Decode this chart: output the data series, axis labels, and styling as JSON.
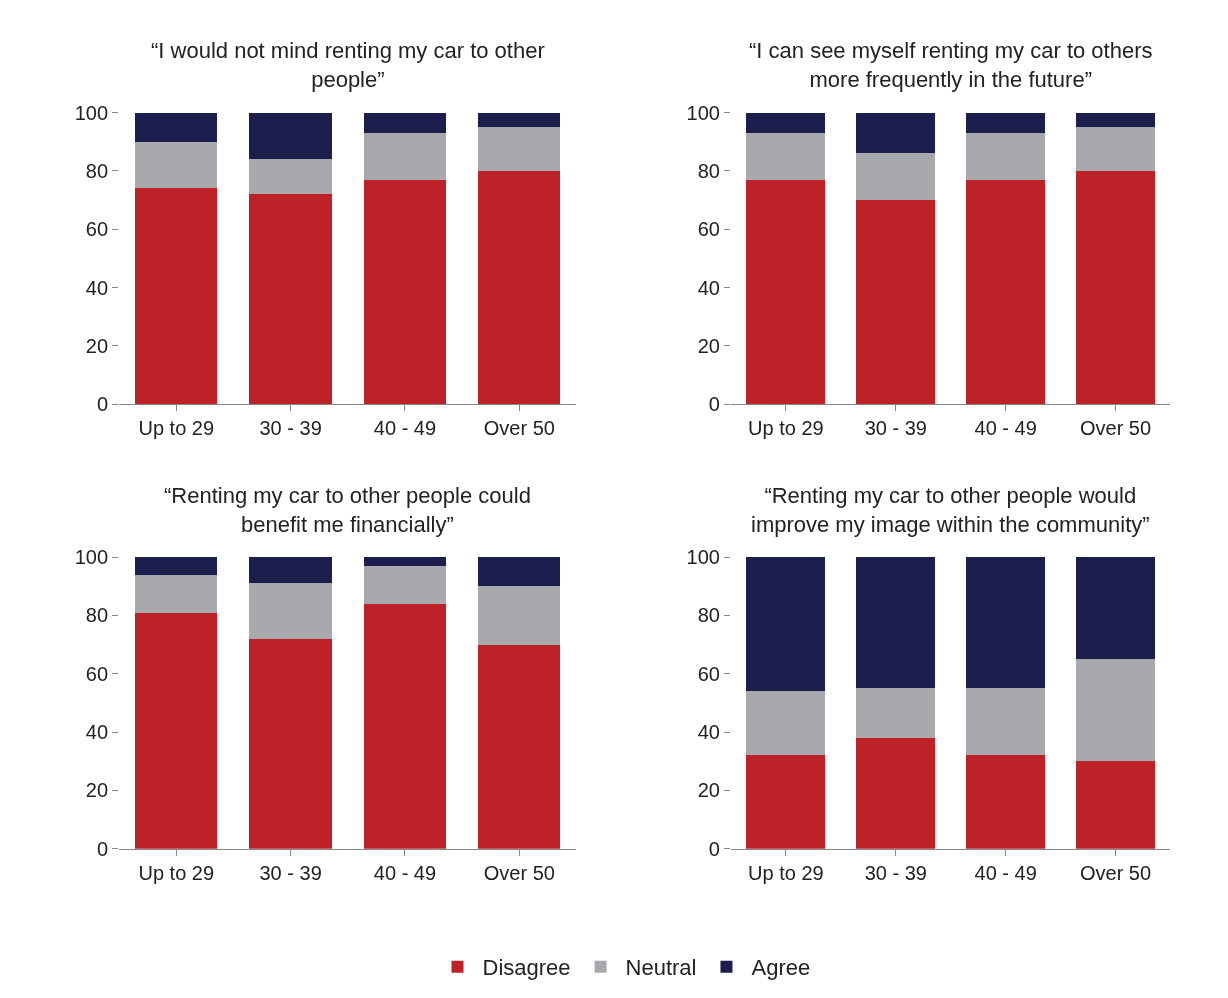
{
  "chart_data": [
    {
      "type": "bar",
      "title": "“I would not mind renting my car to other people”",
      "categories": [
        "Up to 29",
        "30 - 39",
        "40 - 49",
        "Over 50"
      ],
      "stacked": true,
      "ylim": [
        0,
        100
      ],
      "yticks": [
        0,
        20,
        40,
        60,
        80,
        100
      ],
      "legend": "bottom",
      "series": [
        {
          "name": "Disagree",
          "color": "#be2229",
          "values": [
            74,
            72,
            77,
            80
          ]
        },
        {
          "name": "Neutral",
          "color": "#a7a9ac",
          "values": [
            16,
            12,
            16,
            15
          ]
        },
        {
          "name": "Agree",
          "color": "#1c1e4d",
          "values": [
            10,
            16,
            7,
            5
          ]
        }
      ]
    },
    {
      "type": "bar",
      "title": "“I can see myself renting my car to others more frequently in the future”",
      "categories": [
        "Up to 29",
        "30 - 39",
        "40 - 49",
        "Over 50"
      ],
      "stacked": true,
      "ylim": [
        0,
        100
      ],
      "yticks": [
        0,
        20,
        40,
        60,
        80,
        100
      ],
      "series": [
        {
          "color": "#be2229",
          "values": [
            77,
            70,
            77,
            80
          ]
        },
        {
          "color": "#a7a9ac",
          "values": [
            16,
            16,
            16,
            15
          ]
        },
        {
          "color": "#1c1e4d",
          "values": [
            7,
            14,
            7,
            5
          ]
        }
      ]
    },
    {
      "type": "bar",
      "title": "“Renting my car to other people could benefit me financially”",
      "categories": [
        "Up to 29",
        "30 - 39",
        "40 - 49",
        "Over 50"
      ],
      "stacked": true,
      "ylim": [
        0,
        100
      ],
      "yticks": [
        0,
        20,
        40,
        60,
        80,
        100
      ],
      "series": [
        {
          "color": "#be2229",
          "values": [
            81,
            72,
            84,
            70
          ]
        },
        {
          "color": "#a7a9ac",
          "values": [
            13,
            19,
            13,
            20
          ]
        },
        {
          "color": "#1c1e4d",
          "values": [
            6,
            9,
            3,
            10
          ]
        }
      ]
    },
    {
      "type": "bar",
      "title": "“Renting my car to other people would improve my image within the community”",
      "categories": [
        "Up to 29",
        "30 - 39",
        "40 - 49",
        "Over 50"
      ],
      "stacked": true,
      "ylim": [
        0,
        100
      ],
      "yticks": [
        0,
        20,
        40,
        60,
        80,
        100
      ],
      "series": [
        {
          "color": "#be2229",
          "values": [
            32,
            38,
            32,
            30
          ]
        },
        {
          "color": "#a7a9ac",
          "values": [
            22,
            17,
            23,
            35
          ]
        },
        {
          "color": "#1c1e4d",
          "values": [
            46,
            45,
            45,
            35
          ]
        }
      ]
    }
  ]
}
